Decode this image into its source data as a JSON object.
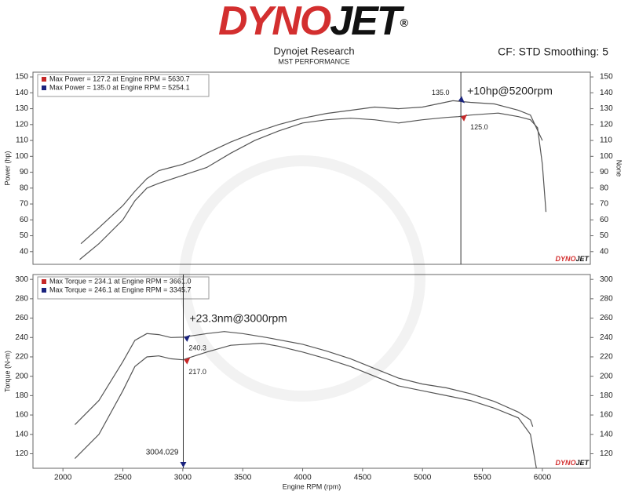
{
  "header": {
    "logo": [
      "DYNO",
      "JET",
      "®"
    ],
    "title": "Dynojet Research",
    "subtitle": "MST PERFORMANCE",
    "correction": "CF: STD Smoothing: 5"
  },
  "chart_data": [
    {
      "type": "line",
      "ylabel": "Power (hp)",
      "y2label": "None",
      "line_color": "#555555",
      "xlim": [
        1750,
        6400
      ],
      "ylim": [
        32,
        153
      ],
      "yticks": [
        40,
        50,
        60,
        70,
        80,
        90,
        100,
        110,
        120,
        130,
        140,
        150
      ],
      "y2lim": [
        32,
        153
      ],
      "y2ticks": [
        40,
        50,
        60,
        70,
        80,
        90,
        100,
        110,
        120,
        130,
        140,
        150
      ],
      "series": [
        {
          "name": "Max Power = 127.2 at Engine RPM = 5630.7",
          "color": "#c62828",
          "x": [
            2140,
            2300,
            2500,
            2600,
            2700,
            2800,
            3000,
            3200,
            3400,
            3600,
            3800,
            4000,
            4200,
            4400,
            4600,
            4800,
            5000,
            5200,
            5300,
            5400,
            5631,
            5800,
            5900,
            5960,
            6000,
            6030
          ],
          "values": [
            35,
            45,
            60,
            72,
            80,
            83,
            88,
            93,
            102,
            110,
            116,
            121,
            123,
            124,
            123,
            121,
            123,
            124.5,
            125,
            126,
            127.2,
            125,
            123,
            118,
            95,
            65
          ]
        },
        {
          "name": "Max Power = 135.0 at Engine RPM = 5254.1",
          "color": "#1a237e",
          "x": [
            2150,
            2300,
            2500,
            2600,
            2700,
            2800,
            2900,
            3000,
            3100,
            3200,
            3400,
            3600,
            3800,
            4000,
            4200,
            4400,
            4600,
            4800,
            5000,
            5254,
            5400,
            5600,
            5800,
            5900,
            6000
          ],
          "values": [
            45,
            55,
            69,
            78,
            86,
            91,
            93,
            95,
            98,
            102,
            109,
            115,
            120,
            124,
            127,
            129,
            131,
            130,
            131,
            135,
            134,
            133,
            129,
            126,
            110
          ]
        }
      ],
      "cursor_x": 5320,
      "markers": [
        {
          "x": 5300,
          "value": 135,
          "label": "135.0",
          "color": "#1a237e"
        },
        {
          "x": 5320,
          "value": 125,
          "label": "125.0",
          "color": "#c62828"
        }
      ],
      "annotation": "+10hp@5200rpm"
    },
    {
      "type": "line",
      "ylabel": "Torque (N-m)",
      "xlabel": "Engine RPM (rpm)",
      "line_color": "#555555",
      "xlim": [
        1750,
        6400
      ],
      "xticks": [
        2000,
        2500,
        3000,
        3500,
        4000,
        4500,
        5000,
        5500,
        6000
      ],
      "ylim": [
        105,
        305
      ],
      "yticks": [
        120,
        140,
        160,
        180,
        200,
        220,
        240,
        260,
        280,
        300
      ],
      "y2lim": [
        105,
        305
      ],
      "y2ticks": [
        120,
        140,
        160,
        180,
        200,
        220,
        240,
        260,
        280,
        300
      ],
      "series": [
        {
          "name": "Max Torque = 234.1 at Engine RPM = 3661.0",
          "color": "#c62828",
          "x": [
            2100,
            2300,
            2500,
            2600,
            2700,
            2800,
            2900,
            3000,
            3200,
            3400,
            3661,
            3800,
            4000,
            4200,
            4400,
            4600,
            4800,
            5000,
            5200,
            5400,
            5600,
            5800,
            5900,
            5950
          ],
          "values": [
            115,
            140,
            185,
            210,
            220,
            221,
            218,
            217,
            225,
            232,
            234.1,
            231,
            225,
            218,
            210,
            200,
            190,
            185,
            180,
            175,
            167,
            157,
            140,
            105
          ]
        },
        {
          "name": "Max Torque = 246.1 at Engine RPM = 3345.7",
          "color": "#1a237e",
          "x": [
            2100,
            2300,
            2500,
            2600,
            2700,
            2800,
            2900,
            3000,
            3200,
            3346,
            3500,
            3700,
            4000,
            4200,
            4400,
            4600,
            4800,
            5000,
            5200,
            5400,
            5600,
            5800,
            5900,
            5920
          ],
          "values": [
            150,
            175,
            215,
            237,
            244,
            243,
            240,
            240.3,
            244,
            246.1,
            244,
            240,
            233,
            226,
            218,
            208,
            198,
            192,
            188,
            182,
            174,
            163,
            155,
            148
          ]
        }
      ],
      "cursor_x": 3004.029,
      "markers": [
        {
          "x": 3010,
          "value": 240.3,
          "label": "240.3",
          "color": "#1a237e"
        },
        {
          "x": 3010,
          "value": 217,
          "label": "217.0",
          "color": "#c62828"
        }
      ],
      "annotation": "+23.3nm@3000rpm"
    }
  ]
}
